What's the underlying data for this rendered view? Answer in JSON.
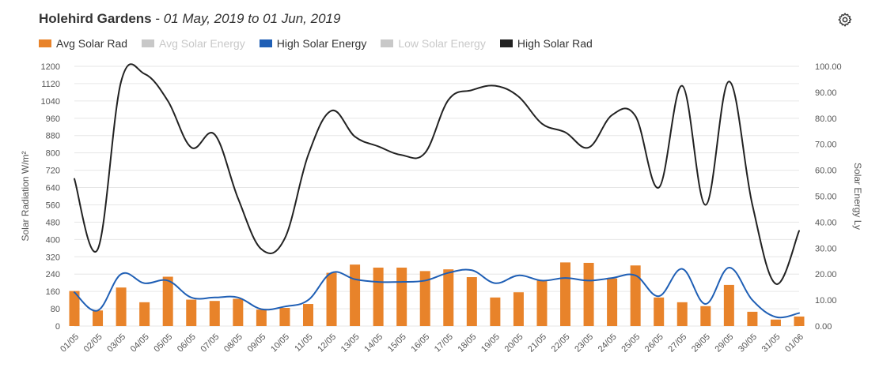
{
  "header": {
    "site": "Holehird Gardens",
    "separator": " - ",
    "range": "01 May, 2019 to 01 Jun, 2019"
  },
  "toolbar": {
    "settings_icon": "gear-icon"
  },
  "legend": [
    {
      "label": "Avg Solar Rad",
      "color": "#e8832a",
      "active": true
    },
    {
      "label": "Avg Solar Energy",
      "color": "#c8c8c8",
      "active": false
    },
    {
      "label": "High Solar Energy",
      "color": "#1f5fb5",
      "active": true
    },
    {
      "label": "Low Solar Energy",
      "color": "#c8c8c8",
      "active": false
    },
    {
      "label": "High Solar Rad",
      "color": "#222222",
      "active": true
    }
  ],
  "chart_data": {
    "type": "bar",
    "categories": [
      "01/05",
      "02/05",
      "03/05",
      "04/05",
      "05/05",
      "06/05",
      "07/05",
      "08/05",
      "09/05",
      "10/05",
      "11/05",
      "12/05",
      "13/05",
      "14/05",
      "15/05",
      "16/05",
      "17/05",
      "18/05",
      "19/05",
      "20/05",
      "21/05",
      "22/05",
      "23/05",
      "24/05",
      "25/05",
      "26/05",
      "27/05",
      "28/05",
      "29/05",
      "30/05",
      "31/05",
      "01/06"
    ],
    "ylabel": "Solar Radiation W/m²",
    "y2label": "Solar Energy Ly",
    "ylim": [
      0,
      1200
    ],
    "y2lim": [
      0,
      100
    ],
    "yticks": [
      "0",
      "80",
      "160",
      "240",
      "320",
      "400",
      "480",
      "560",
      "640",
      "720",
      "800",
      "880",
      "960",
      "1040",
      "1120",
      "1200"
    ],
    "y2ticks": [
      "0.00",
      "10.00",
      "20.00",
      "30.00",
      "40.00",
      "50.00",
      "60.00",
      "70.00",
      "80.00",
      "90.00",
      "100.00"
    ],
    "grid": true,
    "legend_position": "top-left",
    "series": [
      {
        "name": "Avg Solar Rad",
        "type": "bar",
        "axis": "left",
        "color": "#e8832a",
        "values": [
          162,
          72,
          178,
          110,
          228,
          122,
          116,
          126,
          76,
          84,
          102,
          246,
          284,
          270,
          270,
          254,
          262,
          226,
          132,
          156,
          210,
          294,
          292,
          220,
          280,
          132,
          110,
          92,
          190,
          66,
          30,
          44
        ]
      },
      {
        "name": "High Solar Energy",
        "type": "line",
        "axis": "right",
        "color": "#1f5fb5",
        "values": [
          13,
          6,
          20,
          16.5,
          17.5,
          11,
          11,
          11,
          6.5,
          7.5,
          10,
          20.5,
          18,
          17,
          17,
          17.5,
          20.5,
          21.5,
          16.5,
          19.5,
          17.5,
          18.5,
          17.5,
          18.5,
          19.5,
          11.5,
          22,
          8.5,
          22.5,
          10,
          3.5,
          5
        ]
      },
      {
        "name": "High Solar Rad",
        "type": "line",
        "axis": "left",
        "color": "#222222",
        "values": [
          680,
          355,
          1130,
          1165,
          1040,
          825,
          885,
          590,
          355,
          405,
          790,
          995,
          875,
          830,
          790,
          800,
          1045,
          1090,
          1110,
          1060,
          935,
          895,
          825,
          975,
          970,
          640,
          1110,
          560,
          1130,
          560,
          195,
          440
        ]
      }
    ]
  }
}
